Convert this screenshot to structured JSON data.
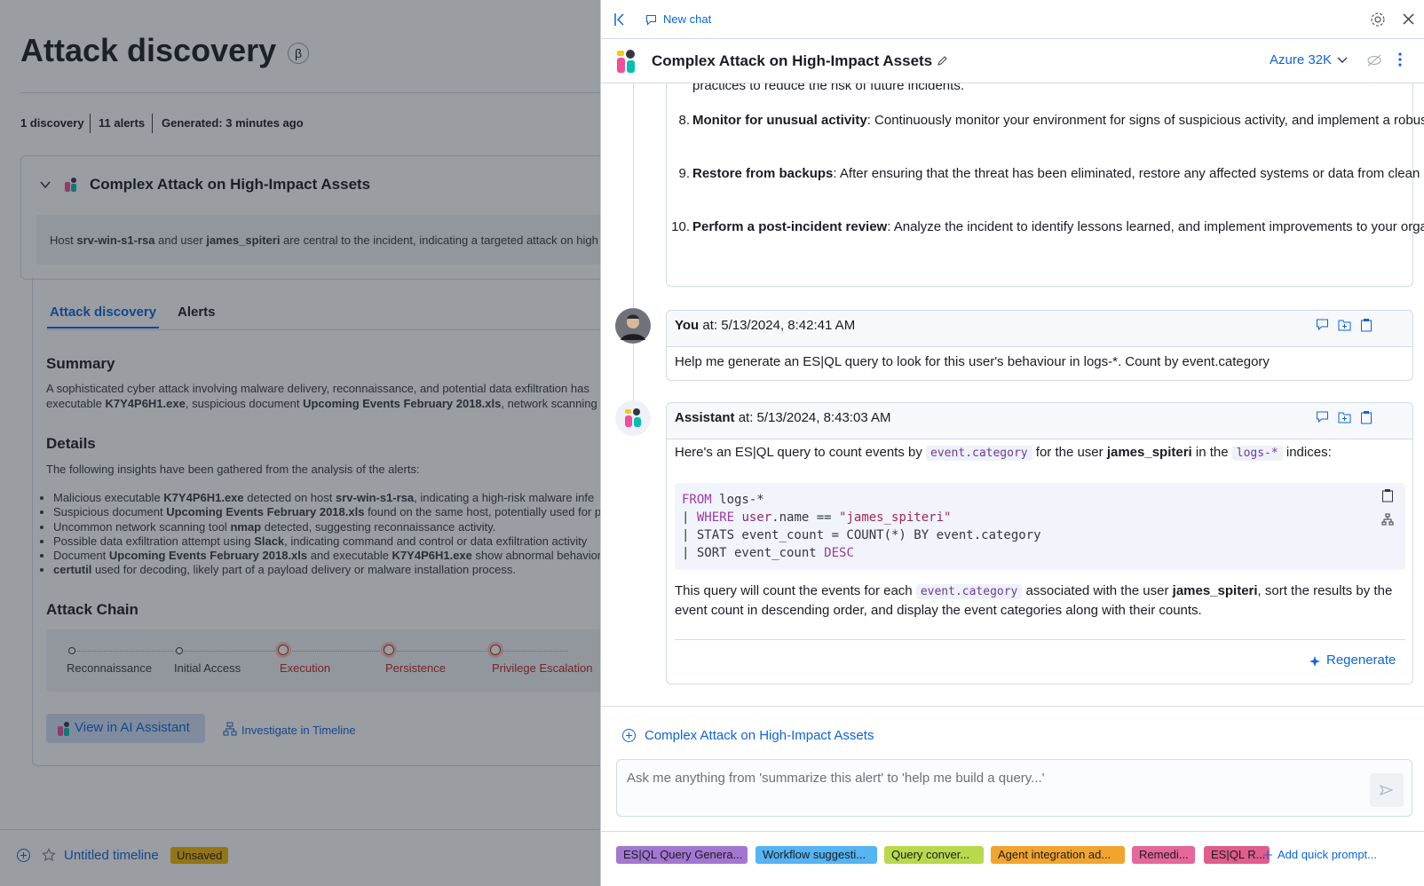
{
  "left": {
    "title": "Attack discovery",
    "beta": "β",
    "stats": [
      "1 discovery",
      "11 alerts",
      "Generated: 3 minutes ago"
    ],
    "discovery": {
      "title": "Complex Attack on High-Impact Assets",
      "headline": [
        "Host ",
        "srv-win-s1-rsa",
        " and user ",
        "james_spiteri",
        " are central to the incident, indicating a targeted attack on high"
      ],
      "tabs": [
        "Attack discovery",
        "Alerts"
      ],
      "summary_title": "Summary",
      "summary": [
        "A sophisticated cyber attack involving malware delivery, reconnaissance, and potential data exfiltration has",
        "executable ",
        "K7Y4P6H1.exe",
        ", suspicious document ",
        "Upcoming Events February 2018.xls",
        ", network scanning w"
      ],
      "details_title": "Details",
      "details_intro": "The following insights have been gathered from the analysis of the alerts:",
      "details": [
        [
          "Malicious executable ",
          "K7Y4P6H1.exe",
          " detected on host ",
          "srv-win-s1-rsa",
          ", indicating a high-risk malware infe"
        ],
        [
          "Suspicious document ",
          "Upcoming Events February 2018.xls",
          " found on the same host, potentially used for p"
        ],
        [
          "Uncommon network scanning tool ",
          "nmap",
          " detected, suggesting reconnaissance activity."
        ],
        [
          "Possible data exfiltration attempt using ",
          "Slack",
          ", indicating command and control or data exfiltration activity"
        ],
        [
          "Document ",
          "Upcoming Events February 2018.xls",
          " and executable ",
          "K7Y4P6H1.exe",
          " show abnormal behavior,"
        ],
        [
          "certutil",
          " used for decoding, likely part of a payload delivery or malware installation process."
        ]
      ],
      "chain_title": "Attack Chain",
      "chain": [
        "Reconnaissance",
        "Initial Access",
        "Execution",
        "Persistence",
        "Privilege Escalation"
      ],
      "actions": [
        "View in AI Assistant",
        "Investigate in Timeline"
      ]
    },
    "timeline": {
      "name": "Untitled timeline",
      "status": "Unsaved"
    }
  },
  "assistant": {
    "new_chat": "New chat",
    "title": "Complex Attack on High-Impact Assets",
    "model": "Azure 32K",
    "previous": {
      "tail": "practices to reduce the risk of future incidents.",
      "items": [
        {
          "number": "8.",
          "title": "Monitor for unusual activity",
          "text": ": Continuously monitor your environment for signs of suspicious activity, and implement a robust incident response plan to quickly detect and respond to future threats."
        },
        {
          "number": "9.",
          "title": "Restore from backups",
          "text": ": After ensuring that the threat has been eliminated, restore any affected systems or data from clean backups."
        },
        {
          "number": "10.",
          "title": "Perform a post-incident review",
          "text": ": Analyze the incident to identify lessons learned, and implement improvements to your organization's security posture and incident response capabilities."
        }
      ]
    },
    "user_message": {
      "author": "You",
      "time": " at: 5/13/2024, 8:42:41 AM",
      "text": "Help me generate an ES|QL query to look for this user's behaviour in logs-*. Count by event.category"
    },
    "reply": {
      "author": "Assistant",
      "time": " at: 5/13/2024, 8:43:03 AM",
      "intro": [
        "Here's an ES|QL query to count events by ",
        "event.category",
        " for the user ",
        "james_spiteri",
        " in the ",
        "logs-*",
        " indices:"
      ],
      "code": [
        [
          "FROM",
          " logs-*"
        ],
        [
          "| ",
          "WHERE",
          " ",
          "user",
          ".name == ",
          "\"james_spiteri\""
        ],
        [
          "| STATS event_count = COUNT(*) BY event.category"
        ],
        [
          "| SORT event_count ",
          "DESC"
        ]
      ],
      "outro": [
        "This query will count the events for each ",
        "event.category",
        " associated with the user ",
        "james_spiteri",
        ", sort the results by the event count in descending order, and display the event categories along with their counts."
      ],
      "regenerate": "Regenerate"
    },
    "context": "Complex Attack on High-Impact Assets",
    "placeholder": "Ask me anything from 'summarize this alert' to 'help me build a query...'",
    "quick_prompts": [
      {
        "label": "ES|QL Query Genera...",
        "color": "#a377d1"
      },
      {
        "label": "Workflow suggesti...",
        "color": "#55b4f2"
      },
      {
        "label": "Query conver...",
        "color": "#b8d94c"
      },
      {
        "label": "Agent integration ad...",
        "color": "#f2a52e"
      },
      {
        "label": "Remedi...",
        "color": "#e5679b"
      },
      {
        "label": "ES|QL R...",
        "color": "#e05d8c"
      }
    ],
    "add_prompt": "Add quick prompt..."
  }
}
